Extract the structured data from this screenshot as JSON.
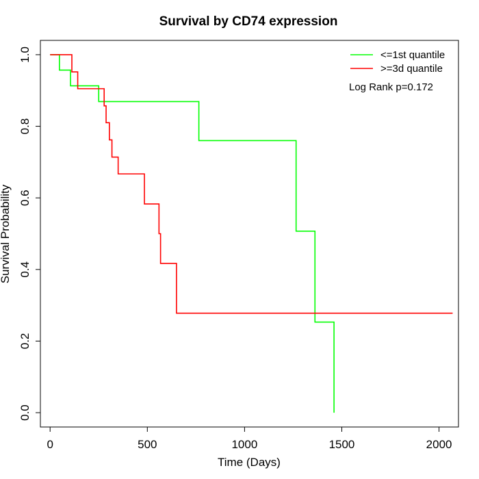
{
  "chart_data": {
    "type": "line",
    "title": "Survival by CD74 expression",
    "xlabel": "Time (Days)",
    "ylabel": "Survival Probability",
    "xlim": [
      -50,
      2100
    ],
    "ylim": [
      -0.04,
      1.04
    ],
    "xticks": [
      0,
      500,
      1000,
      1500,
      2000
    ],
    "xtick_labels": [
      "0",
      "500",
      "1000",
      "1500",
      "2000"
    ],
    "yticks": [
      0.0,
      0.2,
      0.4,
      0.6,
      0.8,
      1.0
    ],
    "ytick_labels": [
      "0.0",
      "0.2",
      "0.4",
      "0.6",
      "0.8",
      "1.0"
    ],
    "grid": false,
    "legend_position": "top-right",
    "annotation": "Log Rank p=0.172",
    "series": [
      {
        "name": "<=1st quantile",
        "color": "#00ff00",
        "step": true,
        "points": [
          [
            0,
            1.0
          ],
          [
            48,
            0.957
          ],
          [
            105,
            0.913
          ],
          [
            250,
            0.869
          ],
          [
            765,
            0.76
          ],
          [
            1265,
            0.507
          ],
          [
            1362,
            0.253
          ],
          [
            1460,
            0.0
          ]
        ],
        "end_x": 1460
      },
      {
        "name": ">=3d quantile",
        "color": "#ff0000",
        "step": true,
        "points": [
          [
            0,
            1.0
          ],
          [
            112,
            0.952
          ],
          [
            142,
            0.905
          ],
          [
            278,
            0.857
          ],
          [
            288,
            0.81
          ],
          [
            305,
            0.762
          ],
          [
            318,
            0.714
          ],
          [
            350,
            0.667
          ],
          [
            485,
            0.583
          ],
          [
            560,
            0.5
          ],
          [
            568,
            0.417
          ],
          [
            650,
            0.278
          ]
        ],
        "end_x": 2070
      }
    ]
  }
}
